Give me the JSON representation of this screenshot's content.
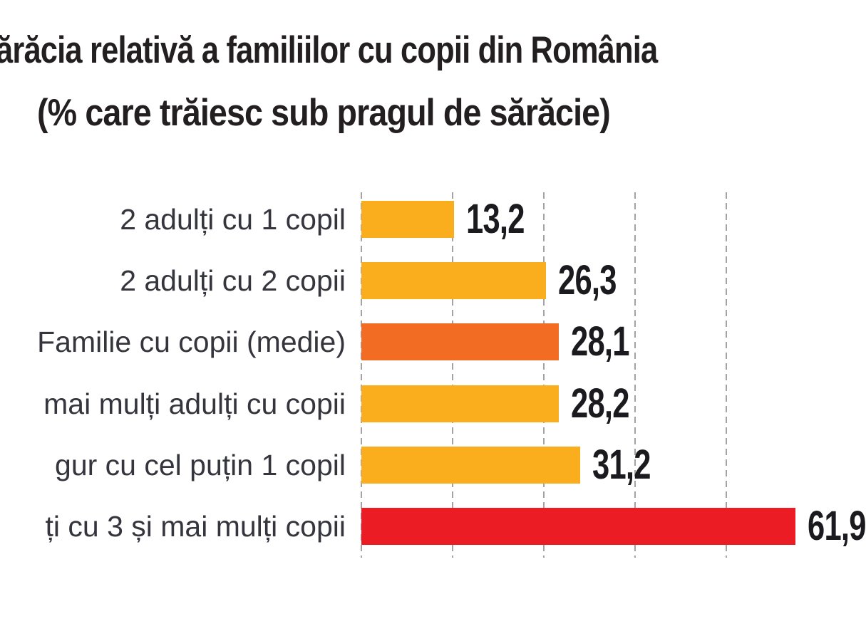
{
  "title": {
    "line1": "ărăcia relativă a familiilor cu copii din România",
    "line2": "(% care trăiesc sub pragul de sărăcie)"
  },
  "chart_data": {
    "type": "bar",
    "orientation": "horizontal",
    "title": "ărăcia relativă a familiilor cu copii din România",
    "subtitle": "(% care trăiesc sub pragul de sărăcie)",
    "unit": "%",
    "xlim": [
      0,
      65
    ],
    "grid": "vertical-dashed-gridlines",
    "legend": "none",
    "categories": [
      "2 adulți cu 1 copil",
      "2 adulți cu 2 copii",
      "Familie cu copii (medie)",
      "mai mulți adulți cu copii",
      "gur cu cel puțin 1 copil",
      "ți cu 3 și mai mulți copii"
    ],
    "rows": [
      {
        "label": "2 adulți cu 1 copil",
        "value": 13.2,
        "value_label": "13,2",
        "color": "#FAAE1D"
      },
      {
        "label": "2 adulți cu 2 copii",
        "value": 26.3,
        "value_label": "26,3",
        "color": "#FAAE1D"
      },
      {
        "label": "Familie cu copii (medie)",
        "value": 28.1,
        "value_label": "28,1",
        "color": "#F26C23"
      },
      {
        "label": "mai mulți adulți cu copii",
        "value": 28.2,
        "value_label": "28,2",
        "color": "#FAAE1D"
      },
      {
        "label": "gur cu cel puțin 1 copil",
        "value": 31.2,
        "value_label": "31,2",
        "color": "#FAAE1D"
      },
      {
        "label": "ți cu 3 și mai mulți copii",
        "value": 61.9,
        "value_label": "61,9",
        "color": "#EC1C24"
      }
    ]
  },
  "colors": {
    "bar_yellow": "#FAAE1D",
    "bar_orange": "#F26C23",
    "bar_red": "#EC1C24",
    "title_text": "#231F20",
    "label_text": "#35353D",
    "value_text": "#1B1B1F",
    "gridline": "#A3A3A3",
    "background": "#FFFFFF"
  }
}
